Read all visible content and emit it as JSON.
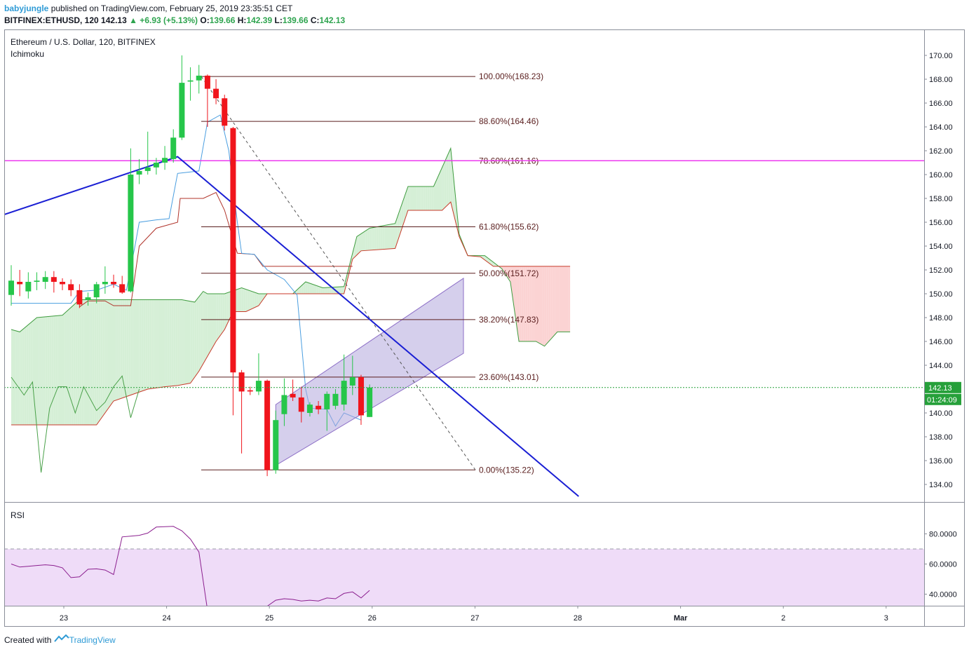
{
  "header": {
    "author": "babyjungle",
    "published": "published on TradingView.com, February 25, 2019 23:35:51 CET",
    "symbol": "BITFINEX:ETHUSD, 120",
    "last": "142.13",
    "change": "▲ +6.93 (+5.13%)",
    "o_label": "O:",
    "o": "139.66",
    "h_label": "H:",
    "h": "142.39",
    "l_label": "L:",
    "l": "139.66",
    "c_label": "C:",
    "c": "142.13"
  },
  "legend": {
    "title": "Ethereum / U.S. Dollar, 120, BITFINEX",
    "indicator": "Ichimoku",
    "rsi": "RSI"
  },
  "footer": {
    "created": "Created with",
    "brand": "TradingView"
  },
  "price_badge": {
    "value": "142.13",
    "countdown": "01:24:09"
  },
  "colors": {
    "up": "#26c64a",
    "down": "#f0151c",
    "trendline": "#1a1fd4",
    "fib": "#5a1e1e",
    "horizontal": "#ee38ef",
    "kumo_bull": "#d5efd6",
    "kumo_bear": "#fbd3d3",
    "channel": "#b3a7dc",
    "rsi_band": "#efdcf8",
    "rsi_line": "#8b1f8f"
  },
  "chart_data": {
    "type": "candlestick",
    "x_ticks": [
      "23",
      "24",
      "25",
      "26",
      "27",
      "28",
      "Mar",
      "2",
      "3"
    ],
    "price_axis": {
      "min": 133,
      "max": 171,
      "ticks": [
        134.0,
        136.0,
        138.0,
        140.0,
        142.0,
        144.0,
        146.0,
        148.0,
        150.0,
        152.0,
        154.0,
        156.0,
        158.0,
        160.0,
        162.0,
        164.0,
        166.0,
        168.0,
        170.0
      ]
    },
    "rsi_axis": {
      "ticks": [
        40,
        60,
        80
      ],
      "tick_labels": [
        "40.0000",
        "60.0000",
        "80.0000"
      ],
      "band": [
        30,
        70
      ]
    },
    "candles": [
      {
        "o": 149.9,
        "h": 152.4,
        "l": 149.0,
        "c": 151.1
      },
      {
        "o": 151.0,
        "h": 152.0,
        "l": 149.8,
        "c": 150.8
      },
      {
        "o": 150.2,
        "h": 151.8,
        "l": 149.6,
        "c": 151.0
      },
      {
        "o": 151.0,
        "h": 151.8,
        "l": 150.3,
        "c": 151.1
      },
      {
        "o": 151.0,
        "h": 151.9,
        "l": 150.4,
        "c": 151.4
      },
      {
        "o": 151.4,
        "h": 151.9,
        "l": 150.1,
        "c": 151.0
      },
      {
        "o": 151.0,
        "h": 151.3,
        "l": 150.3,
        "c": 150.8
      },
      {
        "o": 150.8,
        "h": 151.2,
        "l": 149.8,
        "c": 150.3
      },
      {
        "o": 150.3,
        "h": 150.8,
        "l": 148.8,
        "c": 149.1
      },
      {
        "o": 149.5,
        "h": 150.1,
        "l": 149.0,
        "c": 149.7
      },
      {
        "o": 149.7,
        "h": 151.0,
        "l": 149.2,
        "c": 150.8
      },
      {
        "o": 150.8,
        "h": 152.3,
        "l": 150.0,
        "c": 151.0
      },
      {
        "o": 151.0,
        "h": 151.6,
        "l": 150.5,
        "c": 150.8
      },
      {
        "o": 150.8,
        "h": 151.5,
        "l": 150.0,
        "c": 150.1
      },
      {
        "o": 150.2,
        "h": 162.2,
        "l": 150.1,
        "c": 160.0
      },
      {
        "o": 160.0,
        "h": 161.3,
        "l": 159.2,
        "c": 160.3
      },
      {
        "o": 160.3,
        "h": 163.6,
        "l": 160.0,
        "c": 160.6
      },
      {
        "o": 160.6,
        "h": 161.4,
        "l": 160.0,
        "c": 161.0
      },
      {
        "o": 161.0,
        "h": 162.4,
        "l": 160.4,
        "c": 161.4
      },
      {
        "o": 161.3,
        "h": 163.8,
        "l": 161.0,
        "c": 163.1
      },
      {
        "o": 163.1,
        "h": 170.0,
        "l": 162.9,
        "c": 167.7
      },
      {
        "o": 167.8,
        "h": 169.0,
        "l": 166.2,
        "c": 167.9
      },
      {
        "o": 167.9,
        "h": 169.2,
        "l": 166.8,
        "c": 168.3
      },
      {
        "o": 168.3,
        "h": 168.4,
        "l": 164.0,
        "c": 167.2
      },
      {
        "o": 167.2,
        "h": 168.0,
        "l": 165.9,
        "c": 166.4
      },
      {
        "o": 166.4,
        "h": 166.7,
        "l": 163.7,
        "c": 164.1
      },
      {
        "o": 163.9,
        "h": 164.0,
        "l": 139.8,
        "c": 143.4
      },
      {
        "o": 143.4,
        "h": 143.6,
        "l": 136.6,
        "c": 141.8
      },
      {
        "o": 141.9,
        "h": 142.2,
        "l": 141.5,
        "c": 141.8
      },
      {
        "o": 141.8,
        "h": 145.0,
        "l": 141.5,
        "c": 142.7
      },
      {
        "o": 142.7,
        "h": 142.8,
        "l": 134.7,
        "c": 135.2
      },
      {
        "o": 135.2,
        "h": 140.2,
        "l": 134.9,
        "c": 139.4
      },
      {
        "o": 139.9,
        "h": 142.9,
        "l": 138.9,
        "c": 141.5
      },
      {
        "o": 141.6,
        "h": 142.8,
        "l": 141.0,
        "c": 141.3
      },
      {
        "o": 141.3,
        "h": 142.2,
        "l": 139.2,
        "c": 140.1
      },
      {
        "o": 140.0,
        "h": 140.9,
        "l": 139.7,
        "c": 140.7
      },
      {
        "o": 140.6,
        "h": 141.0,
        "l": 139.9,
        "c": 140.3
      },
      {
        "o": 140.3,
        "h": 141.8,
        "l": 138.5,
        "c": 141.6
      },
      {
        "o": 140.6,
        "h": 142.0,
        "l": 140.3,
        "c": 141.6
      },
      {
        "o": 140.7,
        "h": 144.9,
        "l": 140.2,
        "c": 142.7
      },
      {
        "o": 142.3,
        "h": 144.8,
        "l": 141.5,
        "c": 143.0
      },
      {
        "o": 143.0,
        "h": 143.2,
        "l": 139.0,
        "c": 139.8
      },
      {
        "o": 139.66,
        "h": 142.39,
        "l": 139.66,
        "c": 142.13
      }
    ],
    "fibonacci": [
      {
        "label": "100.00%(168.23)",
        "price": 168.23
      },
      {
        "label": "88.60%(164.46)",
        "price": 164.46
      },
      {
        "label": "78.60%(161.16)",
        "price": 161.16
      },
      {
        "label": "61.80%(155.62)",
        "price": 155.62
      },
      {
        "label": "50.00%(151.72)",
        "price": 151.72
      },
      {
        "label": "38.20%(147.83)",
        "price": 147.83
      },
      {
        "label": "23.60%(143.01)",
        "price": 143.01
      },
      {
        "label": "0.00%(135.22)",
        "price": 135.22
      }
    ],
    "horizontal_line": 161.16,
    "trendline": [
      {
        "bar": -1.0,
        "price": 156.6
      },
      {
        "bar": 19.5,
        "price": 161.5
      },
      {
        "bar": 66.5,
        "price": 133.0
      }
    ],
    "channel": {
      "lower": [
        {
          "bar": 31.0,
          "price": 135.6
        },
        {
          "bar": 53.0,
          "price": 145.0
        }
      ],
      "upper": [
        {
          "bar": 31.0,
          "price": 140.7
        },
        {
          "bar": 53.0,
          "price": 151.3
        }
      ]
    },
    "conversion_line": [
      {
        "bar": 0,
        "price": 149.2
      },
      {
        "bar": 7,
        "price": 149.2
      },
      {
        "bar": 8,
        "price": 150.2
      },
      {
        "bar": 10,
        "price": 150.3
      },
      {
        "bar": 12,
        "price": 150.8
      },
      {
        "bar": 13.5,
        "price": 150.3
      },
      {
        "bar": 14.5,
        "price": 154.0
      },
      {
        "bar": 15,
        "price": 156.0
      },
      {
        "bar": 17,
        "price": 156.2
      },
      {
        "bar": 18.5,
        "price": 156.3
      },
      {
        "bar": 19.5,
        "price": 160.1
      },
      {
        "bar": 22,
        "price": 160.3
      },
      {
        "bar": 23,
        "price": 164.4
      },
      {
        "bar": 24.5,
        "price": 165.0
      },
      {
        "bar": 25.5,
        "price": 162.0
      },
      {
        "bar": 26.5,
        "price": 156.0
      },
      {
        "bar": 27,
        "price": 153.4
      },
      {
        "bar": 28.5,
        "price": 153.3
      },
      {
        "bar": 30,
        "price": 152.0
      },
      {
        "bar": 32,
        "price": 151.2
      },
      {
        "bar": 33.5,
        "price": 149.9
      },
      {
        "bar": 34.5,
        "price": 142.0
      },
      {
        "bar": 35,
        "price": 140.4
      },
      {
        "bar": 37,
        "price": 140.3
      },
      {
        "bar": 38,
        "price": 138.9
      },
      {
        "bar": 39,
        "price": 140.0
      },
      {
        "bar": 41,
        "price": 139.4
      }
    ],
    "base_line": [
      {
        "bar": 8,
        "price": 148.9
      },
      {
        "bar": 9,
        "price": 149.4
      },
      {
        "bar": 11,
        "price": 149.4
      },
      {
        "bar": 12,
        "price": 149.0
      },
      {
        "bar": 14,
        "price": 149.0
      },
      {
        "bar": 15,
        "price": 154.0
      },
      {
        "bar": 17,
        "price": 155.5
      },
      {
        "bar": 19.5,
        "price": 156.0
      },
      {
        "bar": 19.8,
        "price": 158.0
      },
      {
        "bar": 22.5,
        "price": 158.0
      },
      {
        "bar": 24,
        "price": 158.5
      },
      {
        "bar": 25,
        "price": 157.0
      },
      {
        "bar": 26.5,
        "price": 153.4
      },
      {
        "bar": 28.5,
        "price": 153.3
      },
      {
        "bar": 29.5,
        "price": 152.3
      },
      {
        "bar": 40,
        "price": 152.3
      }
    ],
    "lagging_span": [
      {
        "bar": 0,
        "price": 143.0
      },
      {
        "bar": 1.5,
        "price": 141.5
      },
      {
        "bar": 2.5,
        "price": 142.6
      },
      {
        "bar": 3.5,
        "price": 135.0
      },
      {
        "bar": 4.5,
        "price": 140.4
      },
      {
        "bar": 5.5,
        "price": 142.2
      },
      {
        "bar": 6.5,
        "price": 142.2
      },
      {
        "bar": 7.5,
        "price": 140.0
      },
      {
        "bar": 8.5,
        "price": 142.2
      },
      {
        "bar": 10,
        "price": 140.2
      },
      {
        "bar": 11,
        "price": 140.9
      },
      {
        "bar": 12,
        "price": 142.2
      },
      {
        "bar": 13,
        "price": 143.1
      },
      {
        "bar": 14,
        "price": 139.6
      },
      {
        "bar": 15,
        "price": 142.0
      }
    ],
    "senkou_a": [
      {
        "bar": 0,
        "price": 147.0
      },
      {
        "bar": 1,
        "price": 146.8
      },
      {
        "bar": 3,
        "price": 148.0
      },
      {
        "bar": 6,
        "price": 148.2
      },
      {
        "bar": 8,
        "price": 149.5
      },
      {
        "bar": 20,
        "price": 149.5
      },
      {
        "bar": 21.5,
        "price": 149.3
      },
      {
        "bar": 22.5,
        "price": 150.2
      },
      {
        "bar": 23,
        "price": 150.0
      },
      {
        "bar": 25,
        "price": 150.0
      },
      {
        "bar": 27,
        "price": 150.5
      },
      {
        "bar": 29,
        "price": 150.0
      },
      {
        "bar": 33,
        "price": 150.0
      },
      {
        "bar": 34.5,
        "price": 151.0
      },
      {
        "bar": 36.5,
        "price": 150.5
      },
      {
        "bar": 39,
        "price": 150.6
      },
      {
        "bar": 40.5,
        "price": 154.8
      },
      {
        "bar": 42,
        "price": 155.5
      },
      {
        "bar": 45,
        "price": 155.9
      },
      {
        "bar": 46.5,
        "price": 159.0
      },
      {
        "bar": 49.5,
        "price": 159.0
      },
      {
        "bar": 51.5,
        "price": 162.2
      },
      {
        "bar": 52.5,
        "price": 155.0
      },
      {
        "bar": 53.5,
        "price": 153.2
      },
      {
        "bar": 55.5,
        "price": 153.2
      },
      {
        "bar": 57.5,
        "price": 152.1
      },
      {
        "bar": 58.5,
        "price": 151.0
      },
      {
        "bar": 59.5,
        "price": 146.0
      },
      {
        "bar": 61.5,
        "price": 146.0
      },
      {
        "bar": 62.5,
        "price": 145.6
      },
      {
        "bar": 64,
        "price": 146.8
      },
      {
        "bar": 65.5,
        "price": 146.8
      }
    ],
    "senkou_b": [
      {
        "bar": 0,
        "price": 139.0
      },
      {
        "bar": 10,
        "price": 139.0
      },
      {
        "bar": 12,
        "price": 141.0
      },
      {
        "bar": 14,
        "price": 141.5
      },
      {
        "bar": 16,
        "price": 142.0
      },
      {
        "bar": 18,
        "price": 142.2
      },
      {
        "bar": 19.5,
        "price": 142.3
      },
      {
        "bar": 21,
        "price": 142.5
      },
      {
        "bar": 22,
        "price": 143.5
      },
      {
        "bar": 24,
        "price": 146.0
      },
      {
        "bar": 25,
        "price": 147.0
      },
      {
        "bar": 26,
        "price": 148.5
      },
      {
        "bar": 27.5,
        "price": 148.5
      },
      {
        "bar": 29,
        "price": 149.0
      },
      {
        "bar": 30,
        "price": 150.0
      },
      {
        "bar": 39,
        "price": 150.0
      },
      {
        "bar": 40,
        "price": 152.9
      },
      {
        "bar": 41,
        "price": 153.6
      },
      {
        "bar": 45,
        "price": 153.8
      },
      {
        "bar": 46.5,
        "price": 157.0
      },
      {
        "bar": 50.5,
        "price": 157.0
      },
      {
        "bar": 51.5,
        "price": 157.7
      },
      {
        "bar": 52.5,
        "price": 154.8
      },
      {
        "bar": 53.5,
        "price": 153.2
      },
      {
        "bar": 55,
        "price": 153.1
      },
      {
        "bar": 56.5,
        "price": 152.3
      },
      {
        "bar": 65.5,
        "price": 152.3
      }
    ],
    "rsi": [
      60.0,
      58.0,
      58.5,
      59.0,
      59.5,
      59.0,
      57.5,
      51.0,
      51.5,
      56.5,
      56.8,
      56.0,
      53.0,
      78.0,
      78.5,
      79.0,
      80.5,
      84.5,
      84.8,
      85.0,
      82.0,
      76.5,
      68.0,
      29.5,
      28.5,
      28.8,
      29.5,
      30.5,
      32.0,
      25.5,
      32.0,
      36.0,
      37.0,
      36.5,
      35.5,
      36.0,
      35.5,
      37.5,
      37.0,
      40.5,
      41.5,
      37.5,
      42.5
    ]
  }
}
